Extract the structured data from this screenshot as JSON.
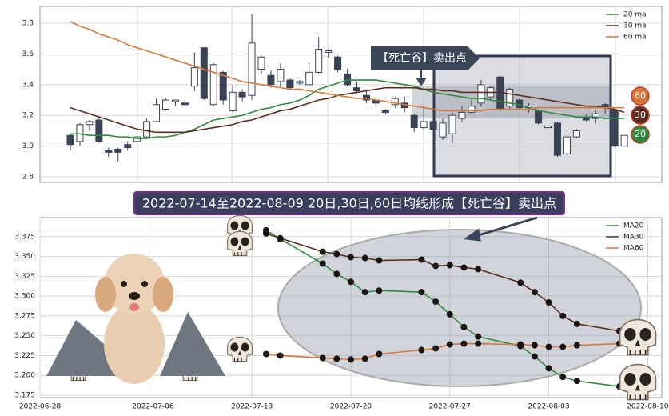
{
  "chart_data": [
    {
      "type": "candlestick",
      "open": [
        3.07,
        3.03,
        3.14,
        3.17,
        2.97,
        2.98,
        3.01,
        3.03,
        3.06,
        3.16,
        3.24,
        3.29,
        3.28,
        3.39,
        3.64,
        3.27,
        3.48,
        3.23,
        3.35,
        3.33,
        3.5,
        3.46,
        3.42,
        3.43,
        3.41,
        3.4,
        3.48,
        3.61,
        3.58,
        3.47,
        3.38,
        3.33,
        3.3,
        3.23,
        3.27,
        3.28,
        3.2,
        3.12,
        3.16,
        3.06,
        3.08,
        3.18,
        3.22,
        3.28,
        3.32,
        3.45,
        3.26,
        3.3,
        3.25,
        3.23,
        3.12,
        3.15,
        2.95,
        3.06,
        3.19,
        3.18,
        3.27,
        3.23,
        3.0
      ],
      "high": [
        3.08,
        3.15,
        3.17,
        3.18,
        2.99,
        2.99,
        3.03,
        3.07,
        3.18,
        3.31,
        3.31,
        3.3,
        3.3,
        3.61,
        3.64,
        3.54,
        3.49,
        3.4,
        3.37,
        3.86,
        3.59,
        3.49,
        3.54,
        3.44,
        3.43,
        3.54,
        3.71,
        3.63,
        3.59,
        3.5,
        3.42,
        3.37,
        3.31,
        3.24,
        3.32,
        3.32,
        3.21,
        3.26,
        3.19,
        3.18,
        3.22,
        3.26,
        3.3,
        3.43,
        3.39,
        3.46,
        3.38,
        3.31,
        3.28,
        3.24,
        3.17,
        3.16,
        3.11,
        3.11,
        3.21,
        3.23,
        3.28,
        3.24,
        3.07
      ],
      "low": [
        2.97,
        3.0,
        3.1,
        3.02,
        2.93,
        2.9,
        2.97,
        3.03,
        3.05,
        3.16,
        3.23,
        3.26,
        3.26,
        3.36,
        3.3,
        3.26,
        3.27,
        3.22,
        3.29,
        3.3,
        3.47,
        3.38,
        3.38,
        3.37,
        3.4,
        3.39,
        3.47,
        3.58,
        3.48,
        3.39,
        3.35,
        3.28,
        3.25,
        3.21,
        3.25,
        3.22,
        3.09,
        3.11,
        3.07,
        3.04,
        3.02,
        3.16,
        3.21,
        3.26,
        3.3,
        3.23,
        3.24,
        3.24,
        3.22,
        3.14,
        3.08,
        2.93,
        2.94,
        3.05,
        3.16,
        3.15,
        3.21,
        2.99,
        3.0
      ],
      "close": [
        3.01,
        3.14,
        3.16,
        3.03,
        2.96,
        2.96,
        2.99,
        3.06,
        3.16,
        3.27,
        3.3,
        3.3,
        3.27,
        3.51,
        3.31,
        3.53,
        3.3,
        3.35,
        3.32,
        3.67,
        3.58,
        3.4,
        3.5,
        3.38,
        3.42,
        3.48,
        3.63,
        3.62,
        3.5,
        3.4,
        3.36,
        3.3,
        3.28,
        3.22,
        3.31,
        3.25,
        3.12,
        3.16,
        3.11,
        3.15,
        3.2,
        3.22,
        3.26,
        3.4,
        3.38,
        3.24,
        3.37,
        3.25,
        3.26,
        3.15,
        3.13,
        2.94,
        3.06,
        3.1,
        3.17,
        3.21,
        3.25,
        3.0,
        3.07
      ],
      "candle_color": "#3a4256",
      "series": [
        {
          "name": "20 ma",
          "color": "#2e8b3e",
          "values": [
            3.08,
            3.08,
            3.07,
            3.07,
            3.07,
            3.06,
            3.06,
            3.05,
            3.05,
            3.06,
            3.06,
            3.07,
            3.09,
            3.11,
            3.14,
            3.17,
            3.18,
            3.19,
            3.2,
            3.22,
            3.24,
            3.25,
            3.27,
            3.28,
            3.3,
            3.33,
            3.37,
            3.39,
            3.41,
            3.43,
            3.43,
            3.43,
            3.43,
            3.42,
            3.41,
            3.4,
            3.39,
            3.37,
            3.35,
            3.34,
            3.33,
            3.32,
            3.31,
            3.31,
            3.3,
            3.29,
            3.28,
            3.27,
            3.25,
            3.23,
            3.22,
            3.21,
            3.2,
            3.19,
            3.19,
            3.19,
            3.18,
            3.18,
            3.18
          ]
        },
        {
          "name": "30 ma",
          "color": "#5a2d1e",
          "values": [
            3.25,
            3.23,
            3.21,
            3.19,
            3.17,
            3.15,
            3.13,
            3.11,
            3.1,
            3.09,
            3.09,
            3.09,
            3.09,
            3.1,
            3.11,
            3.12,
            3.13,
            3.14,
            3.16,
            3.17,
            3.19,
            3.21,
            3.23,
            3.24,
            3.26,
            3.28,
            3.3,
            3.31,
            3.33,
            3.34,
            3.35,
            3.36,
            3.37,
            3.38,
            3.38,
            3.38,
            3.38,
            3.37,
            3.37,
            3.36,
            3.36,
            3.35,
            3.35,
            3.35,
            3.35,
            3.35,
            3.34,
            3.33,
            3.32,
            3.31,
            3.3,
            3.29,
            3.28,
            3.27,
            3.26,
            3.26,
            3.25,
            3.24,
            3.22
          ]
        },
        {
          "name": "60 ma",
          "color": "#d9773a",
          "values": [
            3.81,
            3.78,
            3.76,
            3.73,
            3.71,
            3.69,
            3.66,
            3.64,
            3.62,
            3.6,
            3.58,
            3.56,
            3.54,
            3.52,
            3.5,
            3.48,
            3.46,
            3.44,
            3.42,
            3.41,
            3.4,
            3.39,
            3.38,
            3.37,
            3.37,
            3.36,
            3.35,
            3.34,
            3.33,
            3.32,
            3.31,
            3.31,
            3.3,
            3.29,
            3.28,
            3.27,
            3.26,
            3.25,
            3.24,
            3.23,
            3.23,
            3.23,
            3.23,
            3.23,
            3.24,
            3.24,
            3.24,
            3.24,
            3.24,
            3.25,
            3.25,
            3.25,
            3.25,
            3.25,
            3.25,
            3.25,
            3.25,
            3.25,
            3.25
          ]
        }
      ],
      "ylim": [
        2.764,
        3.909
      ],
      "yticks": [
        2.8,
        {
          "value": 3.0,
          "label": "3.0"
        },
        3.2,
        3.4,
        3.6,
        3.8
      ],
      "grid": true,
      "legend": "upper right",
      "annotation": "【死亡谷】卖出点",
      "end_labels": [
        "60",
        "30",
        "20"
      ]
    },
    {
      "type": "line",
      "title": "2022-07-14至2022-08-09 20日,30日,60日均线形成【死亡谷】卖出点",
      "x": [
        "2022-07-14",
        "2022-07-15",
        "2022-07-18",
        "2022-07-19",
        "2022-07-20",
        "2022-07-21",
        "2022-07-22",
        "2022-07-25",
        "2022-07-26",
        "2022-07-27",
        "2022-07-28",
        "2022-07-29",
        "2022-08-01",
        "2022-08-02",
        "2022-08-03",
        "2022-08-04",
        "2022-08-05",
        "2022-08-08",
        "2022-08-09"
      ],
      "series": [
        {
          "name": "MA20",
          "color": "#2e8b3e",
          "values": [
            3.383,
            3.372,
            3.341,
            3.328,
            3.318,
            3.305,
            3.307,
            3.305,
            3.293,
            3.277,
            3.261,
            3.249,
            3.237,
            3.224,
            3.209,
            3.198,
            3.193,
            3.186,
            3.187
          ]
        },
        {
          "name": "MA30",
          "color": "#5a2d1e",
          "values": [
            3.379,
            3.373,
            3.356,
            3.353,
            3.349,
            3.348,
            3.345,
            3.346,
            3.338,
            3.339,
            3.336,
            3.334,
            3.317,
            3.305,
            3.292,
            3.275,
            3.265,
            3.256,
            3.248
          ]
        },
        {
          "name": "MA60",
          "color": "#d9773a",
          "values": [
            3.227,
            3.225,
            3.222,
            3.221,
            3.22,
            3.221,
            3.227,
            3.232,
            3.234,
            3.239,
            3.24,
            3.24,
            3.239,
            3.238,
            3.236,
            3.236,
            3.238,
            3.24,
            3.248
          ]
        }
      ],
      "xlim": [
        "2022-06-28",
        "2022-08-11"
      ],
      "xticks": [
        "2022-06-28",
        "2022-07-06",
        "2022-07-13",
        "2022-07-20",
        "2022-07-27",
        "2022-08-03",
        "2022-08-10"
      ],
      "ylim": [
        3.172,
        3.399
      ],
      "yticks": [
        3.175,
        {
          "value": 3.2,
          "label": "3.200"
        },
        3.225,
        {
          "value": 3.25,
          "label": "3.250"
        },
        3.275,
        {
          "value": 3.3,
          "label": "3.300"
        },
        3.325,
        {
          "value": 3.35,
          "label": "3.350"
        },
        3.375
      ],
      "grid": true,
      "legend": "upper right"
    }
  ]
}
